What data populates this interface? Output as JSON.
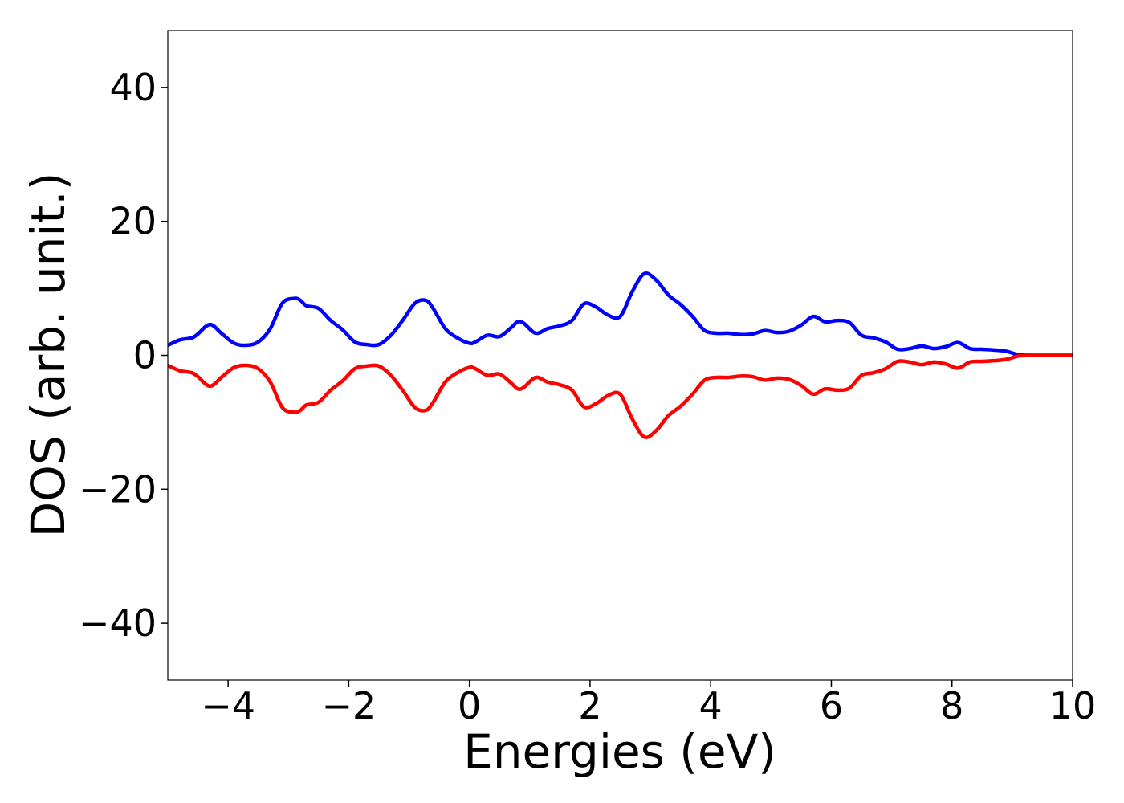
{
  "chart_data": {
    "type": "line",
    "title": "",
    "xlabel": "Energies (eV)",
    "ylabel": "DOS (arb. unit.)",
    "xlim": [
      -5,
      10
    ],
    "ylim": [
      -48.5,
      48.5
    ],
    "xticks": [
      -4,
      -2,
      0,
      2,
      4,
      6,
      8,
      10
    ],
    "xtick_labels": [
      "−4",
      "−2",
      "0",
      "2",
      "4",
      "6",
      "8",
      "10"
    ],
    "yticks": [
      40,
      20,
      0,
      -20,
      -40
    ],
    "ytick_labels": [
      "40",
      "20",
      "0",
      "−20",
      "−40"
    ],
    "grid": false,
    "legend": "none",
    "series": [
      {
        "color": "#0000ff",
        "x": [
          -5.0,
          -4.8,
          -4.6,
          -4.5,
          -4.3,
          -4.1,
          -3.9,
          -3.7,
          -3.5,
          -3.3,
          -3.1,
          -2.9,
          -2.8,
          -2.7,
          -2.5,
          -2.3,
          -2.1,
          -1.9,
          -1.7,
          -1.5,
          -1.3,
          -1.1,
          -0.9,
          -0.72,
          -0.6,
          -0.4,
          -0.2,
          0.0,
          0.1,
          0.3,
          0.5,
          0.7,
          0.8,
          0.9,
          1.1,
          1.3,
          1.5,
          1.7,
          1.9,
          2.1,
          2.3,
          2.5,
          2.7,
          2.9,
          3.1,
          3.3,
          3.5,
          3.7,
          3.9,
          4.1,
          4.3,
          4.5,
          4.7,
          4.9,
          5.1,
          5.3,
          5.5,
          5.7,
          5.9,
          6.1,
          6.3,
          6.5,
          6.7,
          6.9,
          7.1,
          7.3,
          7.5,
          7.7,
          7.9,
          8.1,
          8.3,
          8.5,
          8.7,
          8.9,
          9.1,
          9.3,
          9.5,
          10.0
        ],
        "y": [
          1.5,
          2.3,
          2.6,
          3.2,
          4.6,
          3.2,
          1.8,
          1.5,
          2.0,
          4.0,
          7.8,
          8.5,
          8.2,
          7.4,
          7.0,
          5.2,
          3.8,
          2.0,
          1.6,
          1.6,
          3.0,
          5.3,
          7.8,
          8.2,
          7.0,
          4.0,
          2.6,
          1.8,
          2.0,
          3.0,
          2.8,
          4.2,
          5.0,
          4.8,
          3.3,
          4.0,
          4.4,
          5.2,
          7.7,
          7.2,
          6.0,
          5.8,
          9.5,
          12.2,
          11.2,
          9.0,
          7.6,
          5.8,
          3.7,
          3.3,
          3.3,
          3.1,
          3.2,
          3.7,
          3.4,
          3.6,
          4.5,
          5.8,
          5.0,
          5.2,
          4.9,
          3.0,
          2.6,
          2.0,
          0.9,
          1.0,
          1.4,
          1.0,
          1.3,
          1.9,
          1.0,
          0.9,
          0.8,
          0.6,
          0.1,
          0.0,
          0.0,
          0.0
        ]
      },
      {
        "color": "#ff0000",
        "x": [
          -5.0,
          -4.8,
          -4.6,
          -4.5,
          -4.3,
          -4.1,
          -3.9,
          -3.7,
          -3.5,
          -3.3,
          -3.1,
          -2.9,
          -2.8,
          -2.7,
          -2.5,
          -2.3,
          -2.1,
          -1.9,
          -1.7,
          -1.5,
          -1.3,
          -1.1,
          -0.9,
          -0.72,
          -0.6,
          -0.4,
          -0.2,
          0.0,
          0.1,
          0.3,
          0.5,
          0.7,
          0.8,
          0.9,
          1.1,
          1.3,
          1.5,
          1.7,
          1.9,
          2.1,
          2.3,
          2.5,
          2.7,
          2.9,
          3.1,
          3.3,
          3.5,
          3.7,
          3.9,
          4.1,
          4.3,
          4.5,
          4.7,
          4.9,
          5.1,
          5.3,
          5.5,
          5.7,
          5.9,
          6.1,
          6.3,
          6.5,
          6.7,
          6.9,
          7.1,
          7.3,
          7.5,
          7.7,
          7.9,
          8.1,
          8.3,
          8.5,
          8.7,
          8.9,
          9.1,
          9.3,
          9.5,
          10.0
        ],
        "y": [
          -1.5,
          -2.3,
          -2.6,
          -3.2,
          -4.6,
          -3.2,
          -1.8,
          -1.5,
          -2.0,
          -4.0,
          -7.8,
          -8.5,
          -8.2,
          -7.4,
          -7.0,
          -5.2,
          -3.8,
          -2.0,
          -1.6,
          -1.6,
          -3.0,
          -5.3,
          -7.8,
          -8.2,
          -7.0,
          -4.0,
          -2.6,
          -1.8,
          -2.0,
          -3.0,
          -2.8,
          -4.2,
          -5.0,
          -4.8,
          -3.3,
          -4.0,
          -4.4,
          -5.2,
          -7.7,
          -7.2,
          -6.0,
          -5.8,
          -9.5,
          -12.2,
          -11.2,
          -9.0,
          -7.6,
          -5.8,
          -3.7,
          -3.3,
          -3.3,
          -3.1,
          -3.2,
          -3.7,
          -3.4,
          -3.6,
          -4.5,
          -5.8,
          -5.0,
          -5.2,
          -4.9,
          -3.0,
          -2.6,
          -2.0,
          -0.9,
          -1.0,
          -1.4,
          -1.0,
          -1.3,
          -1.9,
          -1.0,
          -0.9,
          -0.8,
          -0.6,
          -0.1,
          0.0,
          0.0,
          0.0
        ]
      }
    ]
  }
}
